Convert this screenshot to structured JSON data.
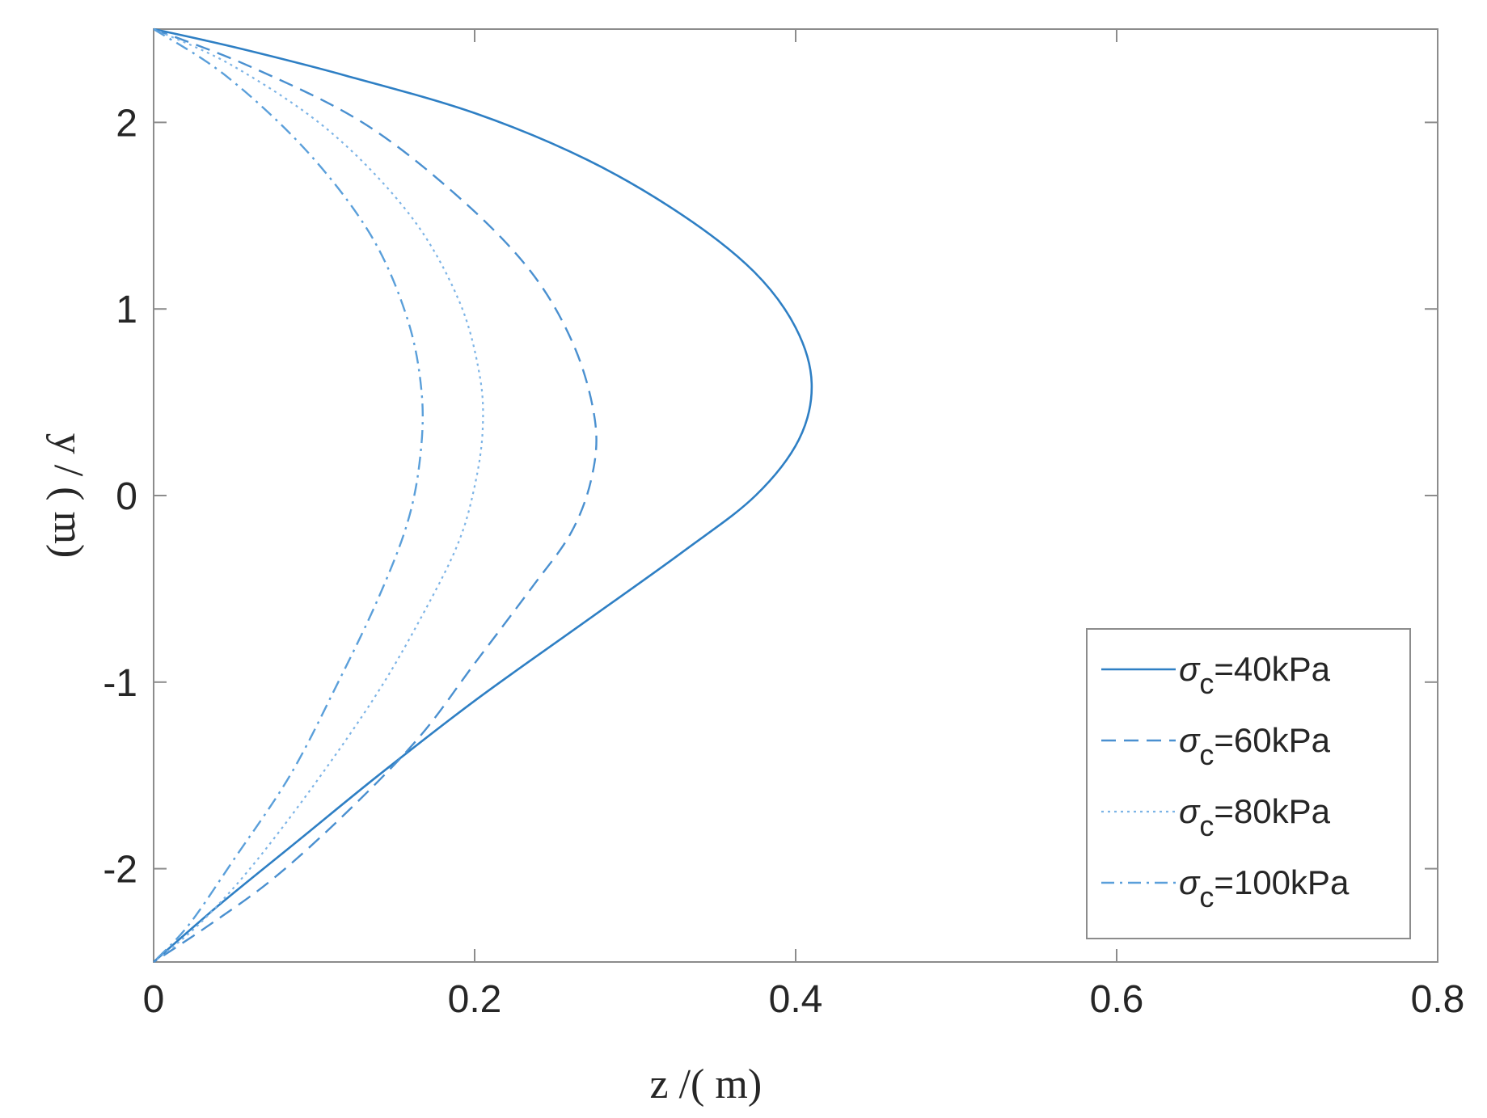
{
  "chart_data": {
    "type": "line",
    "title": "",
    "xlabel": "z /( m)",
    "ylabel": "y / ( m)",
    "xlim": [
      0,
      0.8
    ],
    "ylim": [
      -2.5,
      2.5
    ],
    "xticks": [
      0,
      0.2,
      0.4,
      0.6,
      0.8
    ],
    "xtick_labels": [
      "0",
      "0.2",
      "0.4",
      "0.6",
      "0.8"
    ],
    "yticks": [
      -2,
      -1,
      0,
      1,
      2
    ],
    "ytick_labels": [
      "-2",
      "-1",
      "0",
      "1",
      "2"
    ],
    "grid": false,
    "legend_position": "bottom-right",
    "series": [
      {
        "name": "σc=40kPa",
        "legend_symbol": "σ",
        "legend_sub": "c",
        "legend_value": "=40kPa",
        "style": "solid",
        "color": "#2e7fc4",
        "x": [
          0,
          0.052,
          0.12,
          0.2,
          0.27,
          0.33,
          0.374,
          0.4,
          0.41,
          0.402,
          0.375,
          0.33,
          0.265,
          0.2,
          0.14,
          0.09,
          0.04,
          0
        ],
        "y": [
          2.5,
          2.4,
          2.25,
          2.05,
          1.8,
          1.5,
          1.2,
          0.9,
          0.6,
          0.3,
          0,
          -0.3,
          -0.7,
          -1.1,
          -1.5,
          -1.85,
          -2.2,
          -2.5
        ]
      },
      {
        "name": "σc=60kPa",
        "legend_symbol": "σ",
        "legend_sub": "c",
        "legend_value": "=60kPa",
        "style": "dashed",
        "color": "#4a90d0",
        "x": [
          0,
          0.06,
          0.13,
          0.19,
          0.235,
          0.262,
          0.275,
          0.273,
          0.26,
          0.235,
          0.2,
          0.165,
          0.12,
          0.075,
          0.035,
          0
        ],
        "y": [
          2.5,
          2.3,
          2.0,
          1.6,
          1.2,
          0.8,
          0.4,
          0.1,
          -0.2,
          -0.5,
          -0.9,
          -1.3,
          -1.7,
          -2.05,
          -2.3,
          -2.5
        ]
      },
      {
        "name": "σc=80kPa",
        "legend_symbol": "σ",
        "legend_sub": "c",
        "legend_value": "=80kPa",
        "style": "dotted",
        "color": "#7db4e6",
        "x": [
          0,
          0.05,
          0.11,
          0.16,
          0.19,
          0.203,
          0.205,
          0.2,
          0.19,
          0.17,
          0.14,
          0.1,
          0.06,
          0.028,
          0
        ],
        "y": [
          2.5,
          2.3,
          1.95,
          1.5,
          1.05,
          0.65,
          0.35,
          0.05,
          -0.25,
          -0.6,
          -1.05,
          -1.55,
          -2.0,
          -2.3,
          -2.5
        ]
      },
      {
        "name": "σc=100kPa",
        "legend_symbol": "σ",
        "legend_sub": "c",
        "legend_value": "=100kPa",
        "style": "dashdot",
        "color": "#5a9fda",
        "x": [
          0,
          0.045,
          0.095,
          0.135,
          0.158,
          0.167,
          0.166,
          0.158,
          0.14,
          0.115,
          0.085,
          0.05,
          0.022,
          0
        ],
        "y": [
          2.5,
          2.25,
          1.85,
          1.4,
          0.95,
          0.55,
          0.2,
          -0.15,
          -0.55,
          -1.0,
          -1.5,
          -1.95,
          -2.3,
          -2.5
        ]
      }
    ]
  }
}
